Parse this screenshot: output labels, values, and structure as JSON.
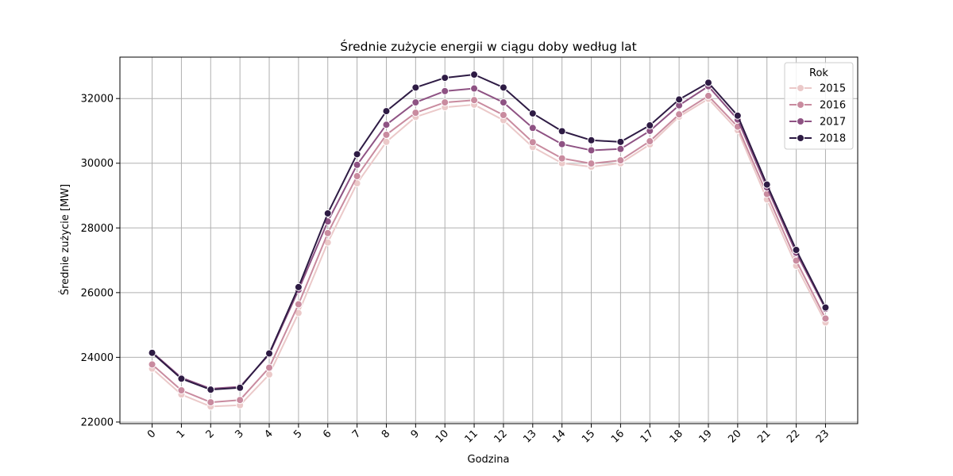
{
  "chart_data": {
    "type": "line",
    "title": "Średnie zużycie energii w ciągu doby według lat",
    "xlabel": "Godzina",
    "ylabel": "Średnie zużycie [MW]",
    "x": [
      0,
      1,
      2,
      3,
      4,
      5,
      6,
      7,
      8,
      9,
      10,
      11,
      12,
      13,
      14,
      15,
      16,
      17,
      18,
      19,
      20,
      21,
      22,
      23
    ],
    "x_tick_labels": [
      "0",
      "1",
      "2",
      "3",
      "4",
      "5",
      "6",
      "7",
      "8",
      "9",
      "10",
      "11",
      "12",
      "13",
      "14",
      "15",
      "16",
      "17",
      "18",
      "19",
      "20",
      "21",
      "22",
      "23"
    ],
    "y_ticks": [
      22000,
      24000,
      26000,
      28000,
      30000,
      32000
    ],
    "y_tick_labels": [
      "22000",
      "24000",
      "26000",
      "28000",
      "30000",
      "32000"
    ],
    "xlim": [
      -1.1,
      24.1
    ],
    "ylim": [
      21950,
      33280
    ],
    "grid": true,
    "legend": {
      "title": "Rok",
      "placement": "top-right"
    },
    "series": [
      {
        "name": "2015",
        "color": "#ebc9c9",
        "values": [
          23650,
          22850,
          22480,
          22520,
          23470,
          25370,
          27550,
          29380,
          30660,
          31430,
          31730,
          31810,
          31330,
          30500,
          30000,
          29890,
          30000,
          30580,
          31440,
          31990,
          31020,
          28880,
          26830,
          25080
        ]
      },
      {
        "name": "2016",
        "color": "#c98b9f",
        "values": [
          23780,
          22980,
          22610,
          22680,
          23680,
          25640,
          27840,
          29600,
          30880,
          31560,
          31880,
          31950,
          31490,
          30650,
          30150,
          29990,
          30090,
          30680,
          31510,
          32080,
          31130,
          29050,
          26990,
          25200
        ]
      },
      {
        "name": "2017",
        "color": "#8e5283",
        "values": [
          24160,
          23370,
          23030,
          23090,
          24090,
          26080,
          28200,
          29950,
          31190,
          31880,
          32230,
          32310,
          31880,
          31090,
          30590,
          30400,
          30440,
          31000,
          31790,
          32380,
          31350,
          29250,
          27230,
          25500
        ]
      },
      {
        "name": "2018",
        "color": "#2e1b44",
        "values": [
          24140,
          23340,
          23000,
          23060,
          24120,
          26170,
          28450,
          30280,
          31610,
          32340,
          32640,
          32740,
          32340,
          31540,
          30990,
          30710,
          30660,
          31170,
          31970,
          32490,
          31470,
          29340,
          27320,
          25540
        ]
      }
    ]
  }
}
